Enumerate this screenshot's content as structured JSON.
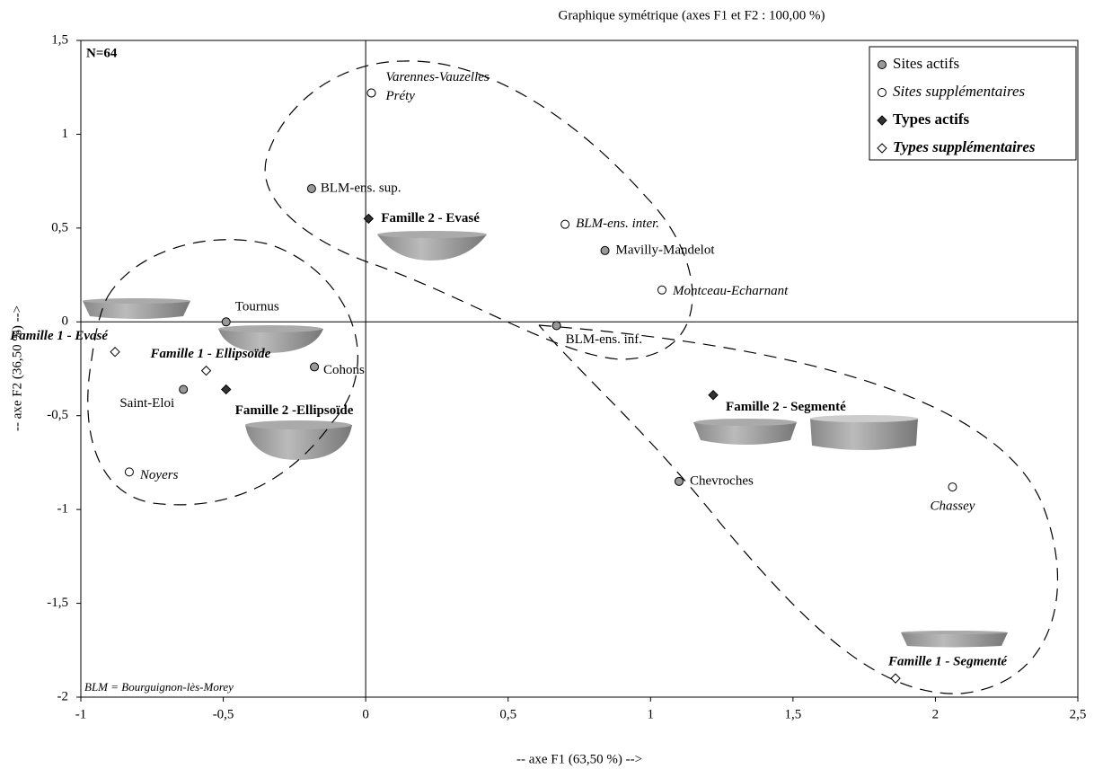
{
  "chart_data": {
    "type": "scatter",
    "title": "Graphique symétrique (axes F1 et F2 : 100,00 %)",
    "x_label": "-- axe F1 (63,50 %) -->",
    "y_label": "-- axe F2 (36,50 %) -->",
    "annotations": [
      "N=64",
      "BLM = Bourguignon-lès-Morey"
    ],
    "xlim": [
      -1,
      2.5
    ],
    "ylim": [
      -2,
      1.5
    ],
    "xticks": [
      -1,
      {
        "value": -0.5,
        "label": "-0,5"
      },
      0,
      {
        "value": 0.5,
        "label": "0,5"
      },
      1,
      {
        "value": 1.5,
        "label": "1,5"
      },
      2,
      {
        "value": 2.5,
        "label": "2,5"
      }
    ],
    "yticks": [
      -2,
      {
        "value": -1.5,
        "label": "-1,5"
      },
      -1,
      {
        "value": -0.5,
        "label": "-0,5"
      },
      0,
      {
        "value": 0.5,
        "label": "0,5"
      },
      1,
      {
        "value": 1.5,
        "label": "1,5"
      }
    ],
    "legend": "top-right",
    "series": [
      {
        "name": "Sites actifs",
        "color": "#999999",
        "marker": "circle",
        "labels": [
          "BLM-ens. sup.",
          "Mavilly-Mandelot",
          "Tournus",
          "Cohons",
          "Saint-Eloi",
          "BLM-ens. inf.",
          "Chevroches"
        ],
        "x": [
          -0.19,
          0.84,
          -0.49,
          -0.18,
          -0.64,
          0.67,
          1.1
        ],
        "values": [
          0.71,
          0.38,
          0.0,
          -0.24,
          -0.36,
          -0.02,
          -0.85
        ]
      },
      {
        "name": "Sites supplémentaires",
        "color": "#ffffff",
        "marker": "circle",
        "labels": [
          "Varennes-Vauzelles",
          "Préty",
          "BLM-ens. inter.",
          "Montceau-Echarnant",
          "Noyers",
          "Chassey"
        ],
        "x": [
          0.02,
          0.02,
          0.7,
          1.04,
          -0.83,
          2.06
        ],
        "values": [
          1.22,
          1.22,
          0.52,
          0.17,
          -0.8,
          -0.88
        ]
      },
      {
        "name": "Types actifs",
        "color": "#333333",
        "marker": "diamond",
        "labels": [
          "Famille 2 - Evasé",
          "Famille 2 -Ellipsoïde",
          "Famille 2 - Segmenté"
        ],
        "x": [
          0.01,
          -0.49,
          1.22
        ],
        "values": [
          0.55,
          -0.36,
          -0.39
        ]
      },
      {
        "name": "Types supplémentaires",
        "color": "#ffffff",
        "marker": "diamond",
        "labels": [
          "Famille 1 - Evasé",
          "Famille 1 - Ellipsoïde",
          "Famille 1 - Segmenté"
        ],
        "x": [
          -0.88,
          -0.56,
          1.86
        ],
        "values": [
          -0.16,
          -0.26,
          -1.9
        ]
      }
    ]
  }
}
